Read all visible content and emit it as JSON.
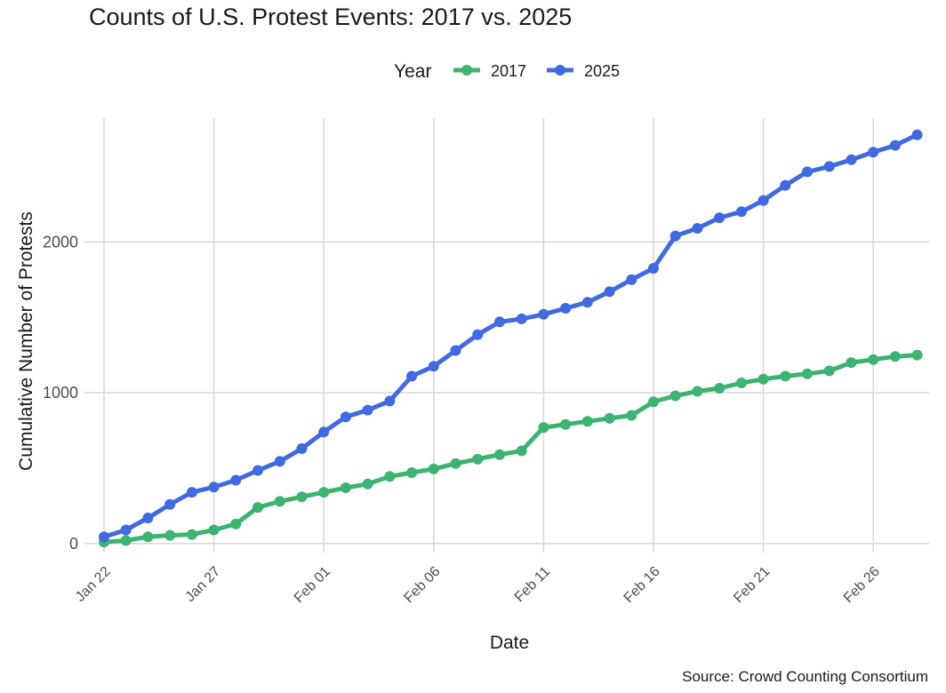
{
  "chart_data": {
    "type": "line",
    "title": "Counts of U.S. Protest Events: 2017 vs. 2025",
    "xlabel": "Date",
    "ylabel": "Cumulative Number of Protests",
    "caption": "Source: Crowd Counting Consortium",
    "legend": {
      "title": "Year",
      "position": "top"
    },
    "grid": true,
    "x_start_date": "Jan 22",
    "x_ticks": [
      "Jan 22",
      "Jan 27",
      "Feb 01",
      "Feb 06",
      "Feb 11",
      "Feb 16",
      "Feb 21",
      "Feb 26"
    ],
    "x": [
      "Jan 22",
      "Jan 23",
      "Jan 24",
      "Jan 25",
      "Jan 26",
      "Jan 27",
      "Jan 28",
      "Jan 29",
      "Jan 30",
      "Jan 31",
      "Feb 01",
      "Feb 02",
      "Feb 03",
      "Feb 04",
      "Feb 05",
      "Feb 06",
      "Feb 07",
      "Feb 08",
      "Feb 09",
      "Feb 10",
      "Feb 11",
      "Feb 12",
      "Feb 13",
      "Feb 14",
      "Feb 15",
      "Feb 16",
      "Feb 17",
      "Feb 18",
      "Feb 19",
      "Feb 20",
      "Feb 21",
      "Feb 22",
      "Feb 23",
      "Feb 24",
      "Feb 25",
      "Feb 26",
      "Feb 27",
      "Feb 28"
    ],
    "y_ticks": [
      0,
      1000,
      2000
    ],
    "ylim": [
      -60,
      2850
    ],
    "series": [
      {
        "name": "2017",
        "color": "#3cb371",
        "values": [
          10,
          20,
          45,
          55,
          60,
          90,
          130,
          240,
          280,
          310,
          340,
          370,
          395,
          445,
          470,
          495,
          530,
          560,
          590,
          615,
          770,
          790,
          810,
          830,
          850,
          940,
          980,
          1010,
          1030,
          1065,
          1090,
          1110,
          1125,
          1145,
          1200,
          1220,
          1240,
          1250
        ]
      },
      {
        "name": "2025",
        "color": "#4169e1",
        "values": [
          45,
          90,
          170,
          260,
          340,
          375,
          420,
          485,
          545,
          630,
          740,
          840,
          885,
          945,
          1110,
          1175,
          1280,
          1385,
          1470,
          1490,
          1520,
          1560,
          1600,
          1670,
          1750,
          1825,
          2040,
          2090,
          2160,
          2200,
          2275,
          2375,
          2465,
          2500,
          2545,
          2595,
          2640,
          2710
        ]
      }
    ]
  }
}
